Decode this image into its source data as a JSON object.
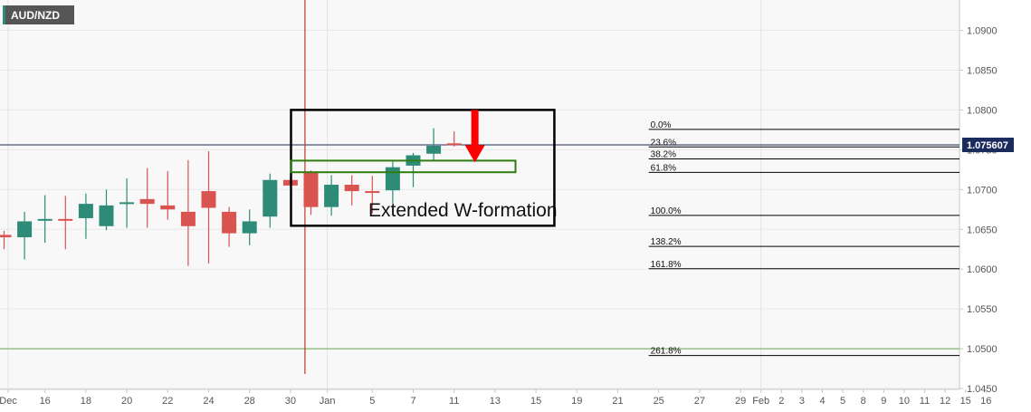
{
  "symbol_label": "AUD/NZD",
  "current_price_label": "1.075607",
  "annotation_text": "Extended W-formation",
  "colors": {
    "up": "#2e8b78",
    "down": "#d9534f",
    "fib_line": "#000000",
    "current_price_line": "#1c2b5e",
    "vertical_marker": "#c0392b",
    "support_line": "#6aa84f",
    "zone_outline": "#2e7d0f",
    "arrow": "#ff0000",
    "plot_bg": "#f8f8f8",
    "badge_bg": "#555555"
  },
  "chart_data": {
    "type": "candlestick",
    "title": "AUD/NZD",
    "ylim": [
      1.0445,
      1.0935
    ],
    "y_ticks": [
      "1.0900",
      "1.0850",
      "1.0800",
      "1.0750",
      "1.0700",
      "1.0650",
      "1.0600",
      "1.0550",
      "1.0500",
      "1.0450"
    ],
    "x_ticks": [
      {
        "label": "Dec",
        "t": 0.2
      },
      {
        "label": "16",
        "t": 2
      },
      {
        "label": "18",
        "t": 4
      },
      {
        "label": "20",
        "t": 6
      },
      {
        "label": "22",
        "t": 8
      },
      {
        "label": "24",
        "t": 10
      },
      {
        "label": "28",
        "t": 12
      },
      {
        "label": "30",
        "t": 14
      },
      {
        "label": "Jan",
        "t": 15.8
      },
      {
        "label": "5",
        "t": 18
      },
      {
        "label": "7",
        "t": 20
      },
      {
        "label": "11",
        "t": 22
      },
      {
        "label": "13",
        "t": 24
      },
      {
        "label": "15",
        "t": 26
      },
      {
        "label": "19",
        "t": 28
      },
      {
        "label": "21",
        "t": 30
      },
      {
        "label": "25",
        "t": 32
      },
      {
        "label": "27",
        "t": 34
      },
      {
        "label": "29",
        "t": 36
      },
      {
        "label": "Feb",
        "t": 37
      },
      {
        "label": "2",
        "t": 38
      },
      {
        "label": "3",
        "t": 39
      },
      {
        "label": "4",
        "t": 40
      },
      {
        "label": "5",
        "t": 41
      },
      {
        "label": "8",
        "t": 42
      },
      {
        "label": "9",
        "t": 43
      },
      {
        "label": "10",
        "t": 44
      },
      {
        "label": "11",
        "t": 45
      },
      {
        "label": "12",
        "t": 46
      },
      {
        "label": "15",
        "t": 47
      },
      {
        "label": "16",
        "t": 48
      }
    ],
    "candles": [
      {
        "t": 0,
        "open": 1.0643,
        "high": 1.0648,
        "low": 1.0625,
        "close": 1.064
      },
      {
        "t": 1,
        "open": 1.064,
        "high": 1.0672,
        "low": 1.0612,
        "close": 1.066
      },
      {
        "t": 2,
        "open": 1.0661,
        "high": 1.0693,
        "low": 1.0633,
        "close": 1.0663
      },
      {
        "t": 3,
        "open": 1.0663,
        "high": 1.0692,
        "low": 1.0625,
        "close": 1.0661
      },
      {
        "t": 4,
        "open": 1.0664,
        "high": 1.0695,
        "low": 1.0638,
        "close": 1.0682
      },
      {
        "t": 5,
        "open": 1.0654,
        "high": 1.07,
        "low": 1.0649,
        "close": 1.068
      },
      {
        "t": 6,
        "open": 1.0682,
        "high": 1.0714,
        "low": 1.0652,
        "close": 1.0684
      },
      {
        "t": 7,
        "open": 1.0688,
        "high": 1.0727,
        "low": 1.0652,
        "close": 1.0682
      },
      {
        "t": 8,
        "open": 1.068,
        "high": 1.0723,
        "low": 1.0662,
        "close": 1.0675
      },
      {
        "t": 9,
        "open": 1.0672,
        "high": 1.0737,
        "low": 1.0604,
        "close": 1.0654
      },
      {
        "t": 10,
        "open": 1.0698,
        "high": 1.0748,
        "low": 1.0607,
        "close": 1.0677
      },
      {
        "t": 11,
        "open": 1.0672,
        "high": 1.0678,
        "low": 1.0628,
        "close": 1.0645
      },
      {
        "t": 12,
        "open": 1.0645,
        "high": 1.0675,
        "low": 1.063,
        "close": 1.066
      },
      {
        "t": 13,
        "open": 1.0666,
        "high": 1.072,
        "low": 1.0652,
        "close": 1.0712
      },
      {
        "t": 14,
        "open": 1.0712,
        "high": 1.0716,
        "low": 1.0702,
        "close": 1.0705
      },
      {
        "t": 15,
        "open": 1.0722,
        "high": 1.0724,
        "low": 1.0668,
        "close": 1.0678
      },
      {
        "t": 16,
        "open": 1.0678,
        "high": 1.0718,
        "low": 1.0667,
        "close": 1.0706
      },
      {
        "t": 17,
        "open": 1.0706,
        "high": 1.0718,
        "low": 1.068,
        "close": 1.0698
      },
      {
        "t": 18,
        "open": 1.0698,
        "high": 1.0717,
        "low": 1.067,
        "close": 1.0697
      },
      {
        "t": 19,
        "open": 1.0699,
        "high": 1.0735,
        "low": 1.0682,
        "close": 1.0728
      },
      {
        "t": 20,
        "open": 1.073,
        "high": 1.0746,
        "low": 1.0703,
        "close": 1.0743
      },
      {
        "t": 21,
        "open": 1.0745,
        "high": 1.0777,
        "low": 1.0736,
        "close": 1.0755
      },
      {
        "t": 22,
        "open": 1.0758,
        "high": 1.0773,
        "low": 1.0754,
        "close": 1.0757
      }
    ],
    "fibonacci": [
      {
        "label": "0.0%",
        "value": 1.07755
      },
      {
        "label": "23.6%",
        "value": 1.07535
      },
      {
        "label": "38.2%",
        "value": 1.07385
      },
      {
        "label": "61.8%",
        "value": 1.07215
      },
      {
        "label": "100.0%",
        "value": 1.06675
      },
      {
        "label": "138.2%",
        "value": 1.06285
      },
      {
        "label": "161.8%",
        "value": 1.06005
      },
      {
        "label": "261.8%",
        "value": 1.04915
      }
    ],
    "current_price": 1.075607,
    "support_level": 1.05,
    "marker_date": "Jan",
    "highlight_box": {
      "t_start": 15.0,
      "t_end": 26.9,
      "y_top": 1.08,
      "y_bottom": 1.06545
    },
    "zone_box": {
      "t_start": 15.0,
      "t_end": 25.0,
      "y_top": 1.0734,
      "y_bottom": 1.0724
    },
    "arrow": {
      "t": 23.9,
      "y_top": 1.08,
      "y_tip": 1.0734
    }
  }
}
